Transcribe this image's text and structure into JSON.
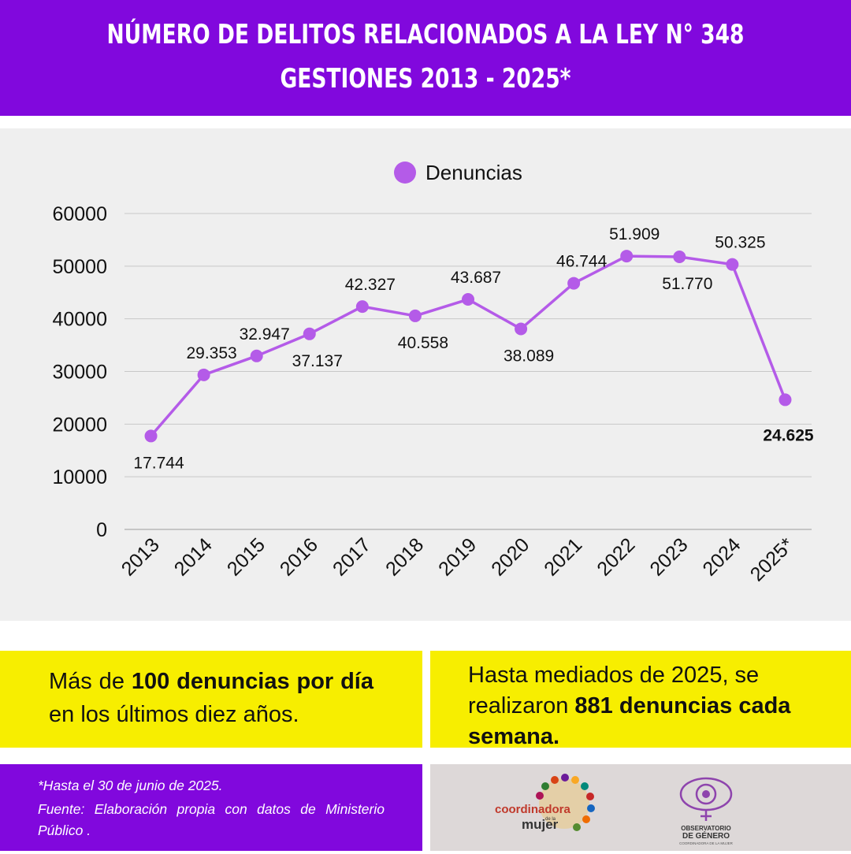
{
  "header": {
    "title_line1": "NÚMERO DE DELITOS RELACIONADOS A LA LEY N° 348",
    "title_line2": "GESTIONES 2013 - 2025*"
  },
  "colors": {
    "purple": "#8108dd",
    "series": "#b45be8",
    "yellow": "#f7ee00"
  },
  "chart_data": {
    "type": "line",
    "legend_position": "top-center",
    "grid": true,
    "ylim": [
      0,
      60000
    ],
    "y_ticks": [
      "0",
      "10000",
      "20000",
      "30000",
      "40000",
      "50000",
      "60000"
    ],
    "categories": [
      "2013",
      "2014",
      "2015",
      "2016",
      "2017",
      "2018",
      "2019",
      "2020",
      "2021",
      "2022",
      "2023",
      "2024",
      "2025*"
    ],
    "series": [
      {
        "name": "Denuncias",
        "values": [
          17744,
          29353,
          32947,
          37137,
          42327,
          40558,
          43687,
          38089,
          46744,
          51909,
          51770,
          50325,
          24625
        ],
        "labels": [
          "17.744",
          "29.353",
          "32.947",
          "37.137",
          "42.327",
          "40.558",
          "43.687",
          "38.089",
          "46.744",
          "51.909",
          "51.770",
          "50.325",
          "24.625"
        ]
      }
    ]
  },
  "stat_boxes": {
    "left": {
      "pre": "Más de ",
      "bold": "100 denuncias por día",
      "post": " en los últimos diez años."
    },
    "right": {
      "pre": "Hasta mediados de 2025, se realizaron ",
      "bold": "881 denuncias cada semana."
    }
  },
  "footnote": {
    "note": "*Hasta el 30 de junio de 2025.",
    "source": "Fuente: Elaboración propia con datos de Ministerio Público ."
  },
  "logos": {
    "coordinadora": {
      "text_main": "coordinadora",
      "text_small": "de la",
      "text_second": "mujer"
    },
    "observatorio": {
      "line1": "OBSERVATORIO",
      "line2": "DE GÉNERO",
      "line3": "COORDINADORA DE LA MUJER"
    }
  }
}
